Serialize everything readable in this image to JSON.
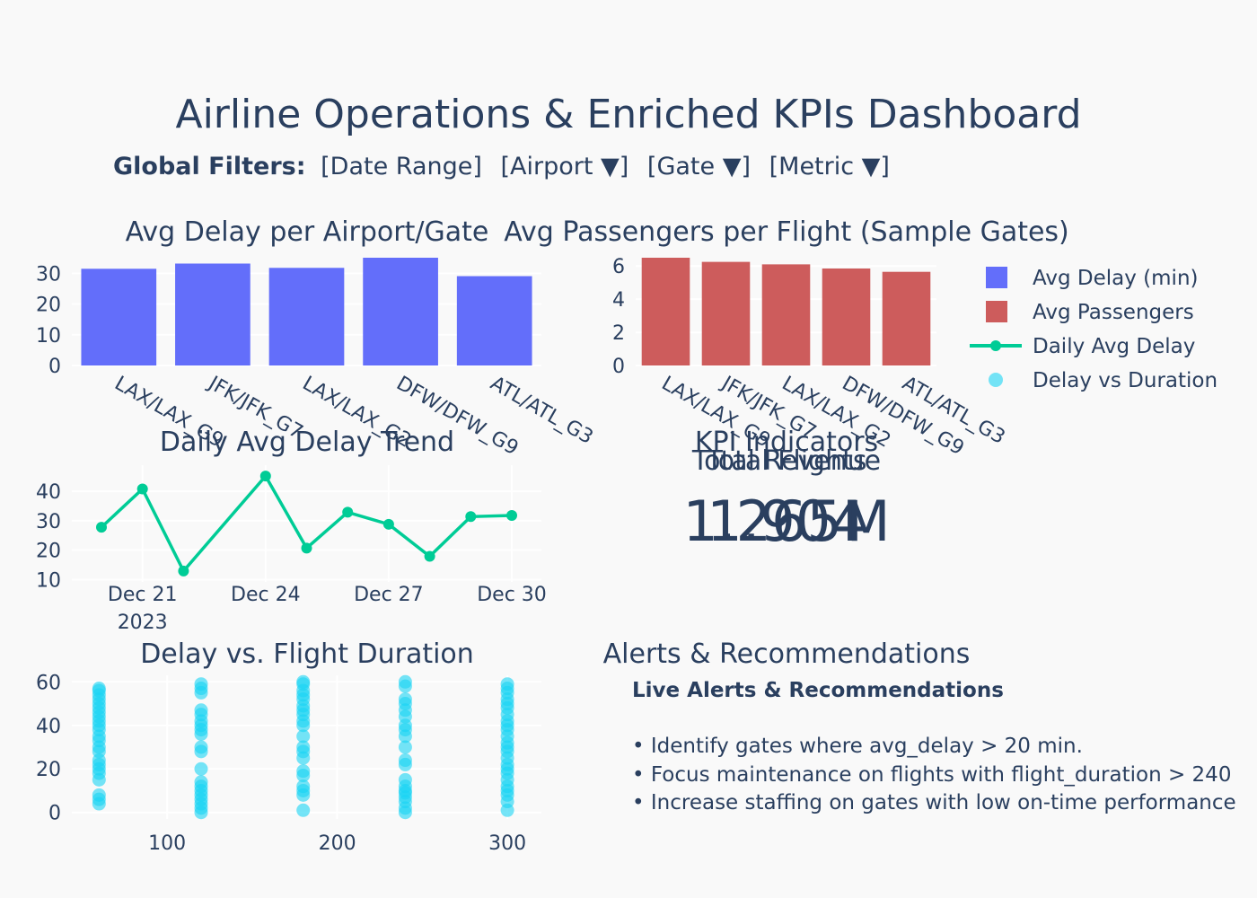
{
  "title": "Airline Operations & Enriched KPIs Dashboard",
  "filters": {
    "label": "Global Filters:",
    "items": [
      "[Date Range]",
      "[Airport ▼]",
      "[Gate ▼]",
      "[Metric ▼]"
    ]
  },
  "colors": {
    "delay_bar": "#636efa",
    "passenger_bar": "#cd5c5c",
    "trend_line": "#00cc96",
    "scatter": "#19d3f3",
    "background": "#f9f9f9",
    "text": "#2a3f5f"
  },
  "legend": [
    "Avg Delay (min)",
    "Avg Passengers",
    "Daily Avg Delay",
    "Delay vs Duration"
  ],
  "chart_data": [
    {
      "type": "bar",
      "title": "Avg Delay per Airport/Gate",
      "categories": [
        "LAX/LAX_G9",
        "JFK/JFK_G7",
        "LAX/LAX_G2",
        "DFW/DFW_G9",
        "ATL/ATL_G3"
      ],
      "series": [
        {
          "name": "Avg Delay (min)",
          "values": [
            31.5,
            33.2,
            31.8,
            35.1,
            29.1
          ]
        }
      ],
      "yticks": [
        0,
        10,
        20,
        30
      ],
      "ylim": [
        0,
        35.1
      ]
    },
    {
      "type": "bar",
      "title": "Avg Passengers per Flight (Sample Gates)",
      "categories": [
        "LAX/LAX_G9",
        "JFK/JFK_G7",
        "LAX/LAX_G2",
        "DFW/DFW_G9",
        "ATL/ATL_G3"
      ],
      "series": [
        {
          "name": "Avg Passengers",
          "values": [
            6.5,
            6.25,
            6.1,
            5.85,
            5.65
          ]
        }
      ],
      "yticks": [
        0,
        2,
        4,
        6
      ],
      "ylim": [
        0,
        6.5
      ]
    },
    {
      "type": "line",
      "title": "Daily Avg Delay Trend",
      "x": [
        "2023-12-20",
        "2023-12-21",
        "2023-12-22",
        "2023-12-23",
        "2023-12-24",
        "2023-12-25",
        "2023-12-26",
        "2023-12-27",
        "2023-12-28",
        "2023-12-29",
        "2023-12-30"
      ],
      "series": [
        {
          "name": "Daily Avg Delay",
          "values": [
            27.8,
            40.8,
            12.9,
            null,
            45.2,
            20.7,
            32.9,
            28.8,
            17.9,
            31.4,
            31.8
          ]
        }
      ],
      "xticks": [
        "Dec 21",
        "Dec 24",
        "Dec 27",
        "Dec 30"
      ],
      "xtick_year": "2023",
      "yticks": [
        10,
        20,
        30,
        40
      ],
      "ylim": [
        9.2,
        48.9
      ]
    },
    {
      "type": "scatter",
      "title": "Delay vs. Flight Duration",
      "series": [
        {
          "name": "Delay vs Duration",
          "x_values": [
            60,
            120,
            180,
            240,
            300
          ],
          "y_values": [
            [
              4,
              6,
              8,
              15,
              18,
              20,
              22,
              24,
              28,
              30,
              33,
              35,
              38,
              40,
              42,
              44,
              46,
              48,
              50,
              52,
              54,
              56,
              57
            ],
            [
              0,
              2,
              4,
              6,
              8,
              10,
              12,
              14,
              20,
              28,
              30,
              36,
              38,
              40,
              42,
              45,
              47,
              55,
              57,
              59
            ],
            [
              1,
              8,
              10,
              12,
              17,
              19,
              25,
              28,
              30,
              35,
              40,
              42,
              45,
              47,
              49,
              52,
              54,
              56,
              59,
              60
            ],
            [
              0,
              2,
              5,
              7,
              9,
              10,
              12,
              15,
              22,
              24,
              30,
              35,
              38,
              40,
              44,
              47,
              50,
              52,
              58,
              60
            ],
            [
              1,
              5,
              8,
              10,
              12,
              15,
              18,
              20,
              22,
              25,
              28,
              30,
              32,
              35,
              38,
              40,
              42,
              45,
              48,
              50,
              52,
              55,
              57,
              59
            ]
          ]
        }
      ],
      "xticks": [
        100,
        200,
        300
      ],
      "yticks": [
        0,
        20,
        40,
        60
      ],
      "xlim": [
        44,
        320
      ],
      "ylim": [
        -3,
        63
      ]
    }
  ],
  "kpi": {
    "header": "KPI Indicators",
    "label_overlap_a": "Total Revenue",
    "label_overlap_b": "Total Flights",
    "value_overlap_a": "1.265M",
    "value_overlap_b": "1.904"
  },
  "alerts": {
    "title": "Alerts & Recommendations",
    "heading": "Live Alerts & Recommendations",
    "items": [
      "• Identify gates where avg_delay > 20 min.",
      "• Focus maintenance on flights with flight_duration > 240",
      "• Increase staffing on gates with low on-time performance"
    ]
  }
}
